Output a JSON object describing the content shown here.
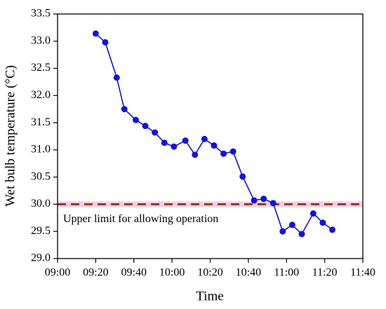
{
  "chart_data": {
    "type": "line",
    "xlabel": "Time",
    "ylabel": "Wet bulb temperature (°C)",
    "x": [
      "09:20",
      "09:25",
      "09:31",
      "09:35",
      "09:41",
      "09:46",
      "09:51",
      "09:56",
      "10:01",
      "10:07",
      "10:12",
      "10:17",
      "10:22",
      "10:27",
      "10:32",
      "10:37",
      "10:43",
      "10:48",
      "10:53",
      "10:58",
      "11:03",
      "11:08",
      "11:14",
      "11:19",
      "11:24"
    ],
    "series": [
      {
        "name": "Wet bulb temperature",
        "color": "#1414d2",
        "values": [
          33.14,
          32.98,
          32.33,
          31.75,
          31.55,
          31.44,
          31.32,
          31.13,
          31.06,
          31.17,
          30.91,
          31.2,
          31.08,
          30.93,
          30.97,
          30.51,
          30.07,
          30.1,
          30.02,
          29.5,
          29.62,
          29.45,
          29.83,
          29.66,
          29.53
        ]
      }
    ],
    "xlim": [
      "09:00",
      "11:40"
    ],
    "xticks": [
      "09:00",
      "09:20",
      "09:40",
      "10:00",
      "10:20",
      "10:40",
      "11:00",
      "11:20",
      "11:40"
    ],
    "ylim": [
      29,
      33.5
    ],
    "yticks": [
      {
        "value": 29,
        "label": "29.0"
      },
      29.5,
      {
        "value": 30,
        "label": "30.0"
      },
      30.5,
      {
        "value": 31,
        "label": "31.0"
      },
      31.5,
      {
        "value": 32,
        "label": "32.0"
      },
      32.5,
      {
        "value": 33,
        "label": "33.0"
      },
      33.5
    ],
    "reference_line": {
      "value": 30,
      "color": "#a0381c",
      "label": "Upper limit for allowing operation"
    }
  }
}
